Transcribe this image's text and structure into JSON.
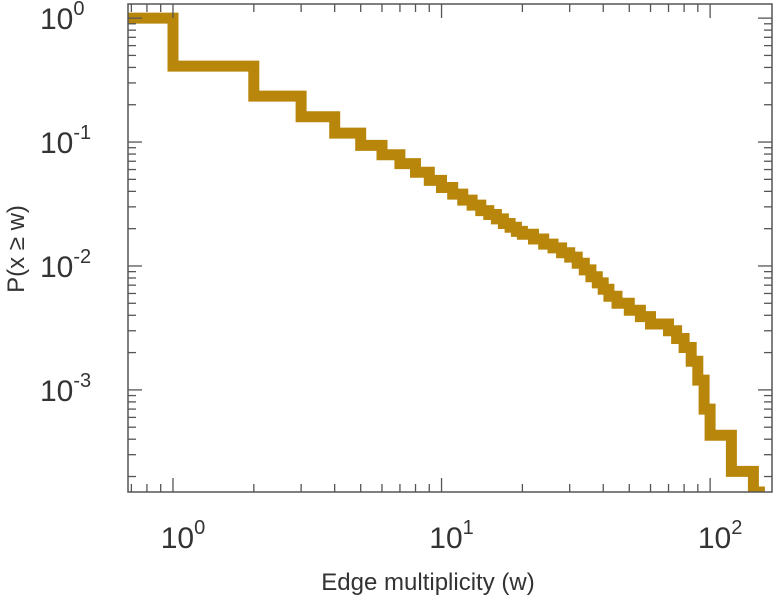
{
  "chart_data": {
    "type": "line",
    "step": true,
    "xscale": "log",
    "yscale": "log",
    "xlabel": "Edge multiplicity (w)",
    "ylabel": "P(x ≥ w)",
    "xlim": [
      0.68,
      170
    ],
    "ylim": [
      0.00015,
      1.3
    ],
    "grid": false,
    "legend": "none",
    "line_color": "#b8860b",
    "xticks": [
      {
        "value": 1,
        "base": "10",
        "exp": "0"
      },
      {
        "value": 10,
        "base": "10",
        "exp": "1"
      },
      {
        "value": 100,
        "base": "10",
        "exp": "2"
      }
    ],
    "yticks": [
      {
        "value": 1,
        "base": "10",
        "exp": "0"
      },
      {
        "value": 0.1,
        "base": "10",
        "exp": "-1"
      },
      {
        "value": 0.01,
        "base": "10",
        "exp": "-2"
      },
      {
        "value": 0.001,
        "base": "10",
        "exp": "-3"
      }
    ],
    "series": [
      {
        "x": [
          0.68,
          1,
          2,
          3,
          4,
          5,
          6,
          7,
          8,
          9,
          10,
          11,
          12,
          13,
          14,
          15,
          16,
          17,
          18,
          19,
          20,
          22,
          24,
          26,
          28,
          30,
          32,
          34,
          36,
          38,
          40,
          42,
          45,
          50,
          55,
          60,
          70,
          75,
          80,
          85,
          90,
          95,
          100,
          120,
          145,
          160
        ],
        "y": [
          1.0,
          0.41,
          0.235,
          0.16,
          0.118,
          0.094,
          0.079,
          0.067,
          0.057,
          0.049,
          0.043,
          0.038,
          0.034,
          0.031,
          0.028,
          0.026,
          0.024,
          0.022,
          0.0205,
          0.019,
          0.018,
          0.0165,
          0.015,
          0.014,
          0.0128,
          0.0118,
          0.0105,
          0.0093,
          0.0082,
          0.0073,
          0.0065,
          0.0057,
          0.005,
          0.0044,
          0.0039,
          0.0034,
          0.003,
          0.0026,
          0.0022,
          0.0017,
          0.0012,
          0.0007,
          0.00043,
          0.00022,
          0.00015,
          0.00015
        ]
      }
    ]
  }
}
